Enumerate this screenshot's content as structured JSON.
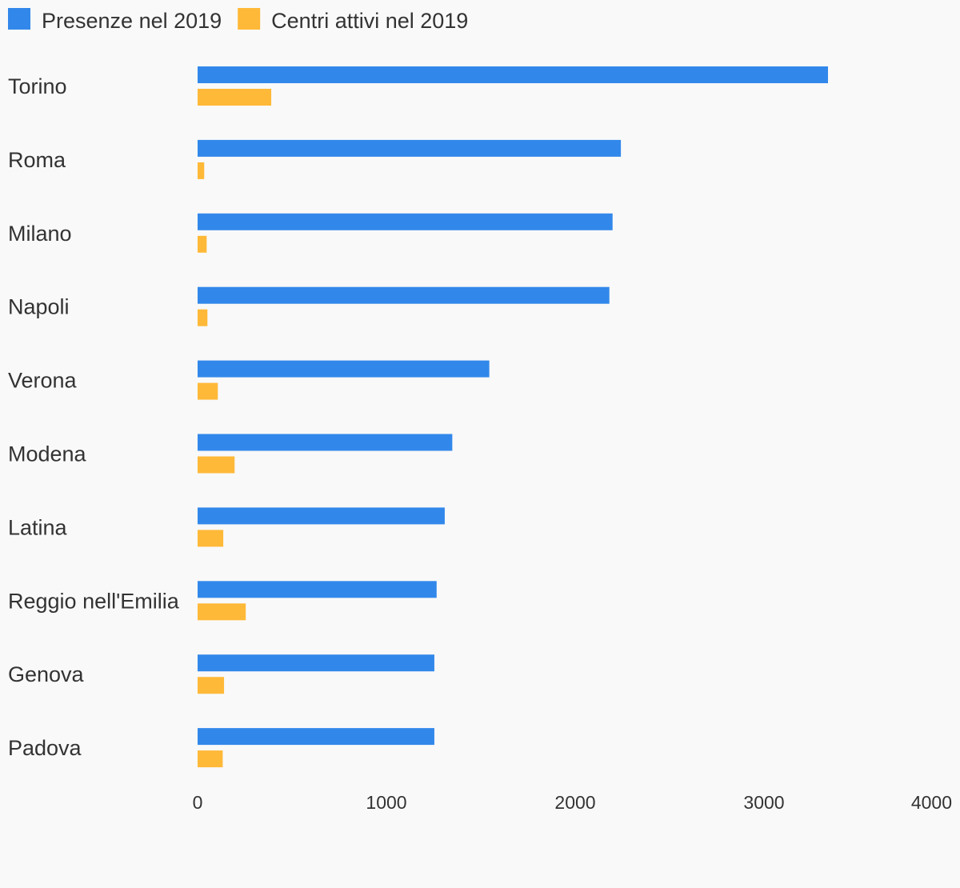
{
  "chart_data": {
    "type": "bar",
    "orientation": "horizontal",
    "categories": [
      "Torino",
      "Roma",
      "Milano",
      "Napoli",
      "Verona",
      "Modena",
      "Latina",
      "Reggio nell'Emilia",
      "Genova",
      "Padova"
    ],
    "series": [
      {
        "name": "Presenze nel 2019",
        "color": "#3288ea",
        "values": [
          3339,
          2242,
          2198,
          2181,
          1545,
          1349,
          1309,
          1266,
          1254,
          1254
        ]
      },
      {
        "name": "Centri attivi nel 2019",
        "color": "#ffb938",
        "values": [
          390,
          35,
          48,
          52,
          107,
          196,
          136,
          255,
          140,
          133
        ]
      }
    ],
    "xlim": [
      0,
      4000
    ],
    "xticks": [
      "0",
      "1000",
      "2000",
      "3000",
      "4000"
    ],
    "grid": false,
    "legend_position": "top-left"
  }
}
